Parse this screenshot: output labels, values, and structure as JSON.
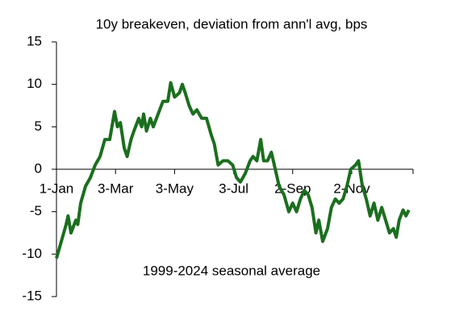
{
  "chart_data": {
    "type": "line",
    "title": "10y breakeven, deviation from ann'l avg, bps",
    "annotation": "1999-2024 seasonal average",
    "x": [
      0,
      5,
      10,
      12,
      15,
      20,
      22,
      25,
      30,
      35,
      40,
      45,
      50,
      55,
      60,
      63,
      66,
      70,
      73,
      77,
      80,
      85,
      88,
      90,
      93,
      97,
      100,
      105,
      110,
      115,
      118,
      122,
      127,
      130,
      133,
      137,
      141,
      145,
      150,
      155,
      160,
      163,
      167,
      172,
      177,
      182,
      186,
      190,
      195,
      200,
      203,
      207,
      211,
      214,
      218,
      222,
      226,
      230,
      235,
      240,
      244,
      248,
      252,
      256,
      260,
      264,
      268,
      271,
      275,
      280,
      284,
      288,
      292,
      296,
      300,
      304,
      309,
      312,
      316,
      320,
      324,
      328,
      332,
      336,
      340,
      344,
      348,
      351,
      354,
      358,
      361,
      364
    ],
    "series": [
      {
        "name": "1999-2024 seasonal average",
        "color": "#1b6e1e",
        "values": [
          -10.5,
          -8.5,
          -6.5,
          -5.5,
          -7.5,
          -6,
          -6.5,
          -4,
          -2,
          -1,
          0.5,
          1.5,
          3.5,
          3.5,
          6.8,
          5,
          5.5,
          2.5,
          1.5,
          3.5,
          4.5,
          6,
          5,
          6.5,
          4.5,
          6,
          5,
          6.5,
          8,
          8,
          10.2,
          8.5,
          9,
          10,
          9,
          7.5,
          6.5,
          7,
          6,
          6,
          4,
          3,
          0.5,
          1,
          1,
          0.5,
          -1,
          -1.5,
          -0.5,
          1,
          1.5,
          1,
          3.5,
          1,
          1,
          2,
          0,
          -2,
          -3,
          -5,
          -4,
          -5,
          -3.5,
          -2.5,
          -3,
          -4.5,
          -7.5,
          -6,
          -8.5,
          -7,
          -4.5,
          -3.5,
          -4,
          -3.5,
          -2,
          0,
          0.5,
          1,
          -2,
          -3.5,
          -5.5,
          -4,
          -6,
          -4.5,
          -6,
          -7.5,
          -7,
          -8,
          -6,
          -4.8,
          -5.5,
          -4.8
        ]
      }
    ],
    "xlim": [
      0,
      365
    ],
    "xticks": [
      {
        "value": 0,
        "label": "1-Jan"
      },
      {
        "value": 61,
        "label": "3-Mar"
      },
      {
        "value": 122,
        "label": "3-May"
      },
      {
        "value": 183,
        "label": "3-Jul"
      },
      {
        "value": 244,
        "label": "2-Sep"
      },
      {
        "value": 305,
        "label": "2-Nov"
      }
    ],
    "ylim": [
      -15,
      15
    ],
    "yticks": [
      -15,
      -10,
      -5,
      0,
      5,
      10,
      15
    ],
    "grid": false
  }
}
